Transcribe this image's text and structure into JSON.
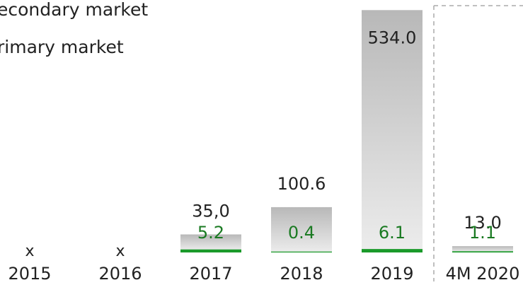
{
  "chart_data": {
    "type": "bar",
    "stacked": true,
    "categories": [
      "2015",
      "2016",
      "2017",
      "2018",
      "2019",
      "4M 2020"
    ],
    "series": [
      {
        "name": "rimary market",
        "color": "#1a9a2a",
        "values": [
          null,
          null,
          5.2,
          0.4,
          6.1,
          1.1
        ]
      },
      {
        "name": "econdary market",
        "color": "#c8c8c8",
        "values": [
          null,
          null,
          35,
          100.6,
          534,
          13
        ],
        "value_labels": [
          "x",
          "x",
          "35,0",
          "100.6",
          "534.0",
          "13.0"
        ]
      }
    ],
    "ylim": [
      0,
      550
    ]
  }
}
